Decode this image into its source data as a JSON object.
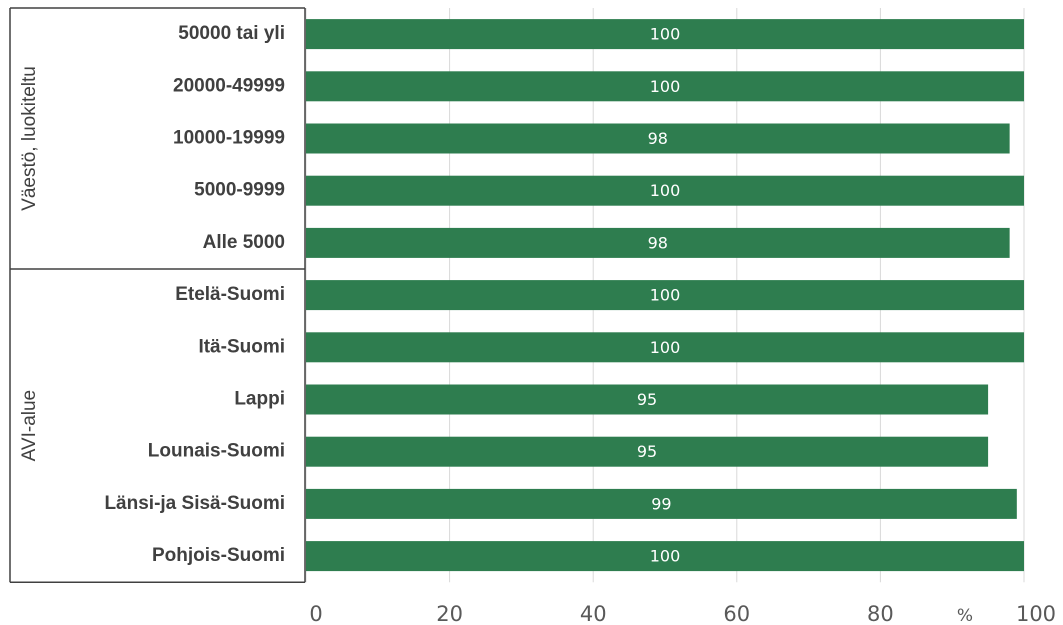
{
  "chart_data": {
    "type": "bar",
    "orientation": "horizontal",
    "groups": [
      {
        "name": "Väestö, luokiteltu",
        "categories": [
          "50000 tai yli",
          "20000-49999",
          "10000-19999",
          "5000-9999",
          "Alle 5000"
        ],
        "values": [
          100,
          100,
          98,
          100,
          98
        ]
      },
      {
        "name": "AVI-alue",
        "categories": [
          "Etelä-Suomi",
          "Itä-Suomi",
          "Lappi",
          "Lounais-Suomi",
          "Länsi-ja Sisä-Suomi",
          "Pohjois-Suomi"
        ],
        "values": [
          100,
          100,
          95,
          95,
          99,
          100
        ]
      }
    ],
    "xticks": [
      "0",
      "20",
      "40",
      "60",
      "80",
      "100"
    ],
    "xlim": [
      0,
      100
    ],
    "unit_label": "%",
    "grid": true,
    "bar_color": "#2e7d4f",
    "label_color": "#ffffff"
  }
}
